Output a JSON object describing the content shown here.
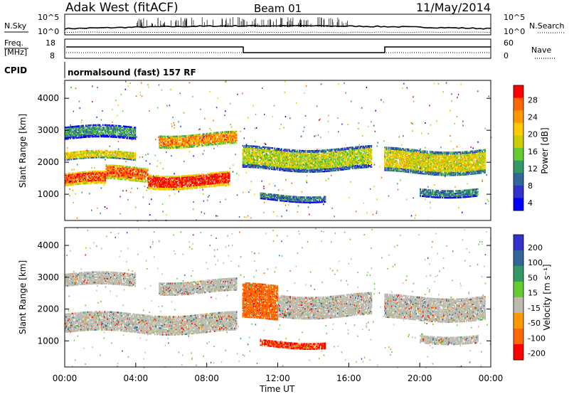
{
  "header": {
    "title": "Adak West (fitACF)",
    "beam": "Beam 01",
    "date": "11/May/2014"
  },
  "noise_panel": {
    "left_label": "N.Sky",
    "right_label": "N.Search",
    "left_ticks": [
      "10^5",
      "10^0"
    ],
    "right_ticks": [
      "10^5",
      "10^0"
    ]
  },
  "freq_panel": {
    "left_label_1": "Freq.",
    "left_label_2": "[MHz]",
    "right_label": "Nave",
    "left_ticks": [
      "18",
      "8"
    ],
    "right_ticks": [
      "60",
      "0"
    ]
  },
  "cpid_panel": {
    "label": "CPID",
    "text": "normalsound (fast) 157 RF"
  },
  "chart_data": [
    {
      "type": "heatmap",
      "name": "Power",
      "ylabel": "Slant Range [km]",
      "ylim": [
        180,
        4560
      ],
      "yticks": [
        "1000",
        "2000",
        "3000",
        "4000"
      ],
      "colorbar": {
        "label": "Power [dB]",
        "ticks": [
          "28",
          "24",
          "20",
          "16",
          "12",
          "8",
          "4"
        ],
        "colors": [
          "#ff0000",
          "#ff6600",
          "#ff9900",
          "#ffcc00",
          "#cccc00",
          "#66cc33",
          "#339966",
          "#336699",
          "#3333cc",
          "#0000ff"
        ]
      },
      "bands": [
        {
          "t0": 0.0,
          "t1": 2.3,
          "r0": 1300,
          "r1": 1700,
          "level": 28
        },
        {
          "t0": 2.3,
          "t1": 4.7,
          "r0": 1450,
          "r1": 1900,
          "level": 26
        },
        {
          "t0": 4.7,
          "t1": 9.3,
          "r0": 1250,
          "r1": 1700,
          "level": 30
        },
        {
          "t0": 5.3,
          "t1": 9.7,
          "r0": 2550,
          "r1": 2950,
          "level": 24
        },
        {
          "t0": 0.0,
          "t1": 4.0,
          "r0": 2100,
          "r1": 2350,
          "level": 18
        },
        {
          "t0": 0.0,
          "t1": 4.0,
          "r0": 2750,
          "r1": 3150,
          "level": 10
        },
        {
          "t0": 10.0,
          "t1": 17.3,
          "r0": 1800,
          "r1": 2500,
          "level": 16
        },
        {
          "t0": 11.0,
          "t1": 14.7,
          "r0": 850,
          "r1": 1050,
          "level": 8
        },
        {
          "t0": 18.0,
          "t1": 23.7,
          "r0": 1700,
          "r1": 2450,
          "level": 18
        },
        {
          "t0": 20.0,
          "t1": 23.3,
          "r0": 1000,
          "r1": 1250,
          "level": 8
        }
      ]
    },
    {
      "type": "heatmap",
      "name": "Velocity",
      "ylabel": "Slant Range [km]",
      "xlabel": "Time UT",
      "ylim": [
        180,
        4560
      ],
      "yticks": [
        "1000",
        "2000",
        "3000",
        "4000"
      ],
      "xticks": [
        "00:00",
        "04:00",
        "08:00",
        "12:00",
        "16:00",
        "20:00",
        "00:00"
      ],
      "colorbar": {
        "label": "Velocity [m s⁻¹]",
        "ticks": [
          "200",
          "100",
          "50",
          "15",
          "-15",
          "-50",
          "-100",
          "-200"
        ],
        "colors": [
          "#3333cc",
          "#336699",
          "#339966",
          "#66cc33",
          "#bbbbb0",
          "#ff9900",
          "#ff6600",
          "#ff0000"
        ]
      },
      "bands": [
        {
          "t0": 0.0,
          "t1": 9.7,
          "r0": 1300,
          "r1": 1900,
          "level": 0
        },
        {
          "t0": 0.0,
          "t1": 4.0,
          "r0": 2750,
          "r1": 3150,
          "level": 0
        },
        {
          "t0": 5.3,
          "t1": 9.7,
          "r0": 2550,
          "r1": 2950,
          "level": 0
        },
        {
          "t0": 10.0,
          "t1": 12.0,
          "r0": 1700,
          "r1": 2800,
          "level": -80
        },
        {
          "t0": 11.0,
          "t1": 14.7,
          "r0": 850,
          "r1": 1050,
          "level": -100
        },
        {
          "t0": 12.0,
          "t1": 17.3,
          "r0": 1800,
          "r1": 2500,
          "level": 0
        },
        {
          "t0": 18.0,
          "t1": 23.7,
          "r0": 1700,
          "r1": 2450,
          "level": 0
        },
        {
          "t0": 20.0,
          "t1": 23.3,
          "r0": 1000,
          "r1": 1250,
          "level": 0
        }
      ]
    }
  ]
}
